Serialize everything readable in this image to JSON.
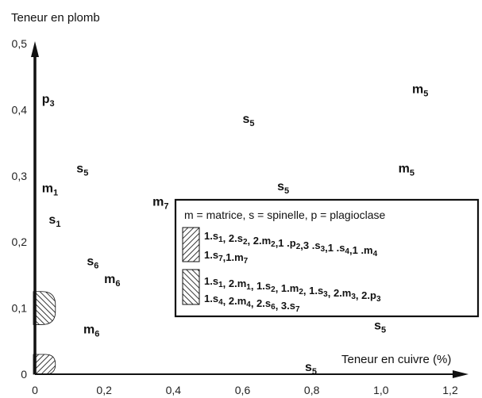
{
  "chart_data": {
    "type": "scatter",
    "title": "",
    "ylabel": "Teneur en plomb",
    "xlabel": "Teneur en cuivre (%)",
    "xlim": [
      0,
      1.2
    ],
    "ylim": [
      0,
      0.5
    ],
    "x_ticks": [
      "0",
      "0,2",
      "0,4",
      "0,6",
      "0,8",
      "1,0",
      "1,2"
    ],
    "y_ticks": [
      "0",
      "0,1",
      "0,2",
      "0,3",
      "0,4",
      "0,5"
    ],
    "points": [
      {
        "label": "p",
        "sub": "3",
        "x": 0.02,
        "y": 0.41
      },
      {
        "label": "s",
        "sub": "5",
        "x": 0.6,
        "y": 0.38
      },
      {
        "label": "m",
        "sub": "5",
        "x": 1.09,
        "y": 0.425
      },
      {
        "label": "s",
        "sub": "5",
        "x": 0.12,
        "y": 0.305
      },
      {
        "label": "m",
        "sub": "5",
        "x": 1.05,
        "y": 0.305
      },
      {
        "label": "m",
        "sub": "1",
        "x": 0.02,
        "y": 0.275
      },
      {
        "label": "s",
        "sub": "5",
        "x": 0.7,
        "y": 0.278
      },
      {
        "label": "m",
        "sub": "7",
        "x": 0.34,
        "y": 0.255
      },
      {
        "label": "s",
        "sub": "1",
        "x": 0.04,
        "y": 0.228
      },
      {
        "label": "s",
        "sub": "6",
        "x": 0.15,
        "y": 0.165
      },
      {
        "label": "m",
        "sub": "6",
        "x": 0.2,
        "y": 0.138
      },
      {
        "label": "m",
        "sub": "6",
        "x": 0.14,
        "y": 0.062
      },
      {
        "label": "s",
        "sub": "5",
        "x": 0.98,
        "y": 0.068
      },
      {
        "label": "s",
        "sub": "5",
        "x": 0.78,
        "y": 0.005
      }
    ],
    "regions": [
      {
        "pattern": "hatch-up",
        "x_from": 0,
        "x_to": 0.05,
        "y_from": 0.0,
        "y_to": 0.03
      },
      {
        "pattern": "hatch-down",
        "x_from": 0,
        "x_to": 0.05,
        "y_from": 0.075,
        "y_to": 0.125
      }
    ],
    "legend": {
      "placement": "center-right",
      "header": "m = matrice, s = spinelle, p = plagioclase",
      "entries": [
        {
          "pattern": "hatch-up",
          "line1": [
            {
              "t": "1.s",
              "s": "1"
            },
            {
              "t": ", 2.s",
              "s": "2"
            },
            {
              "t": ", 2.m",
              "s": "2"
            },
            {
              "t": ",1 .p",
              "s": "2"
            },
            {
              "t": ",3 .s",
              "s": "3"
            },
            {
              "t": ",1 .s",
              "s": "4"
            },
            {
              "t": ",1 .m",
              "s": "4"
            }
          ],
          "line2": [
            {
              "t": "1.s",
              "s": "7"
            },
            {
              "t": ",1.m",
              "s": "7"
            }
          ]
        },
        {
          "pattern": "hatch-down",
          "line1": [
            {
              "t": "1.s",
              "s": "1"
            },
            {
              "t": ", 2.m",
              "s": "1"
            },
            {
              "t": ", 1.s",
              "s": "2"
            },
            {
              "t": ", 1.m",
              "s": "2"
            },
            {
              "t": ", 1.s",
              "s": "3"
            },
            {
              "t": ", 2.m",
              "s": "3"
            },
            {
              "t": ", 2.p",
              "s": "3"
            }
          ],
          "line2": [
            {
              "t": "1.s",
              "s": "4"
            },
            {
              "t": ", 2.m",
              "s": "4"
            },
            {
              "t": ", 2.s",
              "s": "6"
            },
            {
              "t": ", 3.s",
              "s": "7"
            }
          ]
        }
      ]
    }
  }
}
